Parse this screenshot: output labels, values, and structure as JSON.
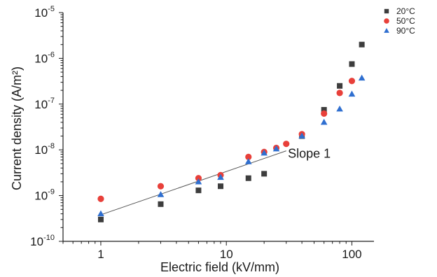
{
  "chart_data": {
    "type": "scatter",
    "title": "",
    "xlabel": "Electric field (kV/mm)",
    "ylabel": "Current density (A/m²)",
    "xscale": "log",
    "yscale": "log",
    "xlim": [
      0.5,
      150
    ],
    "ylim": [
      1e-10,
      1e-05
    ],
    "x_ticks": [
      {
        "value": 1,
        "label": "1"
      },
      {
        "value": 10,
        "label": "10"
      },
      {
        "value": 100,
        "label": "100"
      }
    ],
    "y_ticks": [
      {
        "value": 1e-10,
        "base": "10",
        "exp": "-10"
      },
      {
        "value": 1e-09,
        "base": "10",
        "exp": "-9"
      },
      {
        "value": 1e-08,
        "base": "10",
        "exp": "-8"
      },
      {
        "value": 1e-07,
        "base": "10",
        "exp": "-7"
      },
      {
        "value": 1e-06,
        "base": "10",
        "exp": "-6"
      },
      {
        "value": 1e-05,
        "base": "10",
        "exp": "-5"
      }
    ],
    "grid": false,
    "legend_position": "top-right",
    "series": [
      {
        "name": "20°C",
        "marker": "square",
        "color": "#3d3d3d",
        "x": [
          1,
          3,
          6,
          9,
          15,
          20,
          40,
          60,
          80,
          100,
          120
        ],
        "y": [
          3e-10,
          6.5e-10,
          1.3e-09,
          1.6e-09,
          2.4e-09,
          3e-09,
          2e-08,
          7.5e-08,
          2.5e-07,
          7.5e-07,
          2e-06
        ]
      },
      {
        "name": "50°C",
        "marker": "circle",
        "color": "#e8403a",
        "x": [
          1,
          3,
          6,
          9,
          15,
          20,
          25,
          30,
          40,
          60,
          80,
          100
        ],
        "y": [
          8.5e-10,
          1.6e-09,
          2.4e-09,
          2.8e-09,
          7e-09,
          9e-09,
          1.1e-08,
          1.35e-08,
          2.2e-08,
          6.2e-08,
          1.75e-07,
          3.2e-07
        ]
      },
      {
        "name": "90°C",
        "marker": "triangle",
        "color": "#2f6fd0",
        "x": [
          1,
          3,
          6,
          9,
          15,
          20,
          25,
          40,
          60,
          80,
          100,
          120
        ],
        "y": [
          4e-10,
          1.05e-09,
          2e-09,
          2.5e-09,
          5.5e-09,
          8.5e-09,
          1.05e-08,
          2e-08,
          4e-08,
          7.8e-08,
          1.65e-07,
          3.7e-07
        ]
      }
    ],
    "fit_line": {
      "x": [
        1,
        30
      ],
      "y": [
        3.8e-10,
        9.5e-09
      ],
      "color": "#555555"
    },
    "annotation": {
      "text": "Slope 1",
      "x": 40,
      "y": 8e-09
    }
  }
}
